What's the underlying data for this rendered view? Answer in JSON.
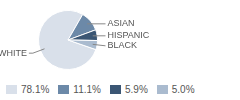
{
  "chart_data": {
    "type": "pie",
    "categories": [
      "WHITE",
      "ASIAN",
      "HISPANIC",
      "BLACK"
    ],
    "values": [
      78.1,
      11.1,
      5.9,
      5.0
    ],
    "value_labels": [
      "78.1%",
      "11.1%",
      "5.9%",
      "5.0%"
    ],
    "colors": [
      "#d9e0ea",
      "#6c89a8",
      "#3b5674",
      "#aabbcf"
    ]
  }
}
